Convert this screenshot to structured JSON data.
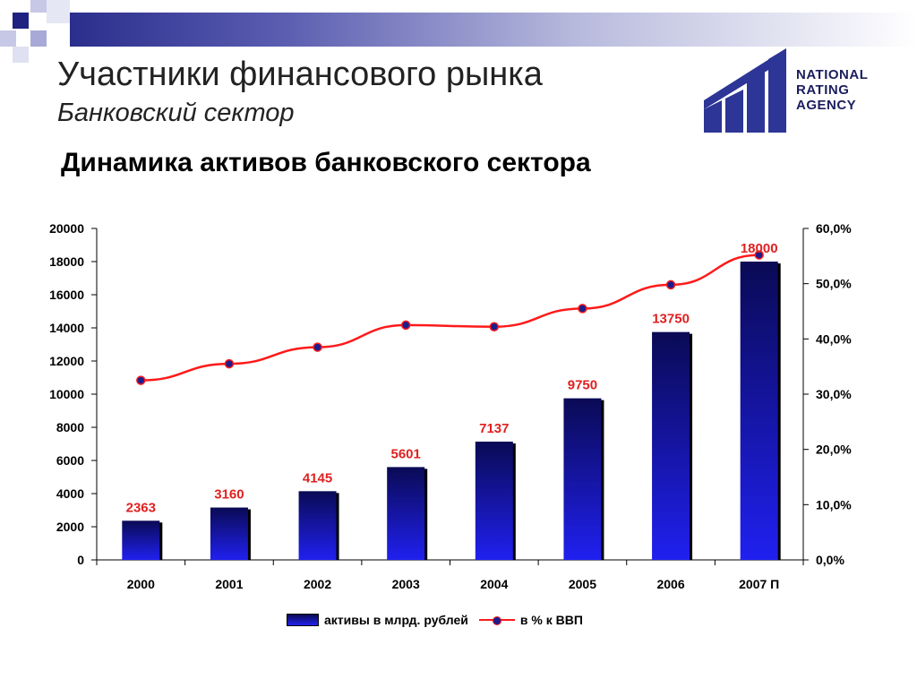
{
  "header": {
    "title": "Участники финансового рынка",
    "subtitle": "Банковский сектор"
  },
  "logo": {
    "line1": "NATIONAL",
    "line2": "RATING",
    "line3": "AGENCY"
  },
  "colors": {
    "bar_top": "#0a0a55",
    "bar_bottom": "#2020f0",
    "line": "#ff1a1a",
    "marker": "#1b1e8c",
    "label": "#e02020",
    "logo": "#2d3596"
  },
  "chart_data": {
    "type": "bar",
    "title": "Динамика активов банковского сектора",
    "categories": [
      "2000",
      "2001",
      "2002",
      "2003",
      "2004",
      "2005",
      "2006",
      "2007 П"
    ],
    "series": [
      {
        "name": "активы в млрд. рублей",
        "type": "bar",
        "axis": "left",
        "values": [
          2363,
          3160,
          4145,
          5601,
          7137,
          9750,
          13750,
          18000
        ]
      },
      {
        "name": "в % к ВВП",
        "type": "line",
        "axis": "right",
        "values": [
          32.5,
          35.5,
          38.5,
          42.5,
          42.2,
          45.5,
          49.8,
          55.2
        ]
      }
    ],
    "y_left": {
      "ylim": [
        0,
        20000
      ],
      "ticks": [
        "0",
        "2000",
        "4000",
        "6000",
        "8000",
        "10000",
        "12000",
        "14000",
        "16000",
        "18000",
        "20000"
      ]
    },
    "y_right": {
      "ylim": [
        0,
        60
      ],
      "ticks": [
        "0,0%",
        "10,0%",
        "20,0%",
        "30,0%",
        "40,0%",
        "50,0%",
        "60,0%"
      ]
    },
    "data_labels": [
      "2363",
      "3160",
      "4145",
      "5601",
      "7137",
      "9750",
      "13750",
      "18000"
    ],
    "legend_position": "bottom",
    "grid": false
  }
}
